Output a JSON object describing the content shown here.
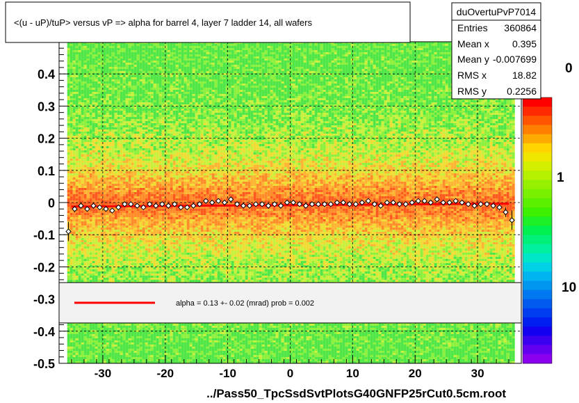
{
  "title": "<(u - uP)/tuP> versus   vP => alpha for barrel 4, layer 7 ladder 14, all wafers",
  "xlabel": "../Pass50_TpcSsdSvtPlotsG40GNFP25rCut0.5cm.root",
  "stats": {
    "name": "duOvertuPvP7014",
    "rows": [
      {
        "label": "Entries",
        "value": "360864"
      },
      {
        "label": "Mean x",
        "value": "0.395"
      },
      {
        "label": "Mean y",
        "value": "-0.007699"
      },
      {
        "label": "RMS x",
        "value": "18.82"
      },
      {
        "label": "RMS y",
        "value": "0.2256"
      }
    ]
  },
  "fit_legend": {
    "text": "alpha =    0.13 +-  0.02 (mrad) prob = 0.002",
    "line_color": "#ff0000"
  },
  "colorbar": {
    "labels": [
      "0",
      "1",
      "10"
    ]
  },
  "chart_data": {
    "type": "scatter",
    "title": "<(u - uP)/tuP> versus   vP => alpha for barrel 4, layer 7 ladder 14, all wafers",
    "xlabel": "../Pass50_TpcSsdSvtPlotsG40GNFP25rCut0.5cm.root",
    "ylabel": "",
    "xlim": [
      -37,
      37
    ],
    "ylim": [
      -0.5,
      0.5
    ],
    "x_ticks": [
      -30,
      -20,
      -10,
      0,
      10,
      20,
      30
    ],
    "y_ticks": [
      -0.5,
      -0.4,
      -0.3,
      -0.2,
      -0.1,
      0,
      0.1,
      0.2,
      0.3,
      0.4
    ],
    "x_tick_labels": [
      "-30",
      "-20",
      "-10",
      "0",
      "10",
      "20",
      "30"
    ],
    "y_tick_labels": [
      "-0.5",
      "-0.4",
      "-0.3",
      "-0.2",
      "-0.1",
      "0",
      "0.1",
      "0.2",
      "0.3",
      "0.4"
    ],
    "grid": true,
    "series": [
      {
        "name": "profile",
        "x": [
          -35.5,
          -34.5,
          -33.5,
          -32.5,
          -31.5,
          -30.5,
          -29.5,
          -28.5,
          -27.5,
          -26.5,
          -25.5,
          -24.5,
          -23.5,
          -22.5,
          -21.5,
          -20.5,
          -19.5,
          -18.5,
          -17.5,
          -16.5,
          -15.5,
          -14.5,
          -13.5,
          -12.5,
          -11.5,
          -10.5,
          -9.5,
          -8.5,
          -7.5,
          -6.5,
          -5.5,
          -4.5,
          -3.5,
          -2.5,
          -1.5,
          -0.5,
          0.5,
          1.5,
          2.5,
          3.5,
          4.5,
          5.5,
          6.5,
          7.5,
          8.5,
          9.5,
          10.5,
          11.5,
          12.5,
          13.5,
          14.5,
          15.5,
          16.5,
          17.5,
          18.5,
          19.5,
          20.5,
          21.5,
          22.5,
          23.5,
          24.5,
          25.5,
          26.5,
          27.5,
          28.5,
          29.5,
          30.5,
          31.5,
          32.5,
          33.5,
          34.5,
          35.5
        ],
        "y": [
          -0.09,
          -0.02,
          -0.01,
          -0.02,
          -0.01,
          -0.015,
          -0.02,
          -0.025,
          -0.015,
          -0.005,
          -0.005,
          -0.01,
          -0.015,
          -0.005,
          -0.01,
          -0.005,
          -0.01,
          -0.005,
          -0.015,
          -0.015,
          -0.01,
          -0.005,
          0.005,
          0.0,
          0.005,
          0.0,
          0.01,
          -0.005,
          -0.01,
          -0.01,
          -0.005,
          -0.005,
          -0.01,
          -0.005,
          -0.01,
          0.0,
          0.0,
          -0.005,
          -0.01,
          -0.005,
          -0.005,
          -0.005,
          -0.005,
          0.0,
          0.0,
          -0.005,
          -0.005,
          0.0,
          0.005,
          -0.005,
          -0.01,
          0.0,
          0.0,
          -0.005,
          -0.005,
          0.0,
          0.005,
          0.005,
          0.0,
          0.01,
          0.0,
          0.0,
          0.005,
          0.0,
          -0.005,
          -0.01,
          -0.005,
          -0.005,
          -0.01,
          -0.015,
          -0.03,
          -0.055
        ],
        "errors": [
          0.03,
          0.01,
          0.005,
          0.005,
          0.005,
          0.005,
          0.005,
          0.005,
          0.005,
          0.005,
          0.005,
          0.005,
          0.005,
          0.005,
          0.005,
          0.005,
          0.005,
          0.005,
          0.005,
          0.005,
          0.005,
          0.005,
          0.005,
          0.005,
          0.005,
          0.005,
          0.005,
          0.005,
          0.005,
          0.005,
          0.005,
          0.005,
          0.005,
          0.005,
          0.005,
          0.005,
          0.005,
          0.005,
          0.005,
          0.005,
          0.005,
          0.005,
          0.005,
          0.005,
          0.005,
          0.005,
          0.005,
          0.005,
          0.005,
          0.005,
          0.005,
          0.005,
          0.005,
          0.005,
          0.005,
          0.005,
          0.005,
          0.005,
          0.005,
          0.005,
          0.005,
          0.005,
          0.005,
          0.005,
          0.005,
          0.005,
          0.005,
          0.005,
          0.005,
          0.01,
          0.015,
          0.03
        ]
      },
      {
        "name": "fit",
        "type": "line",
        "color": "#ff0000",
        "x": [
          -35,
          35
        ],
        "y": [
          -0.0125,
          -0.0035
        ]
      }
    ]
  }
}
